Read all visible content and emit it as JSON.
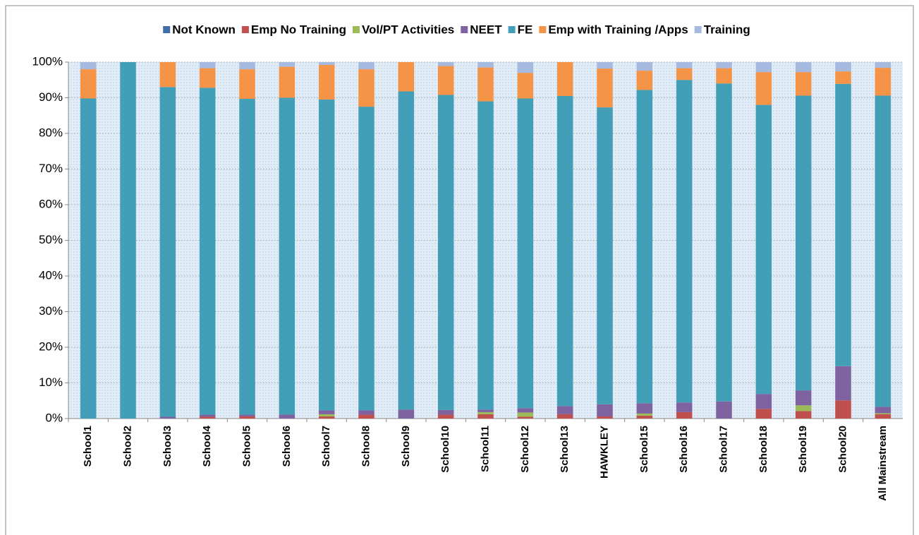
{
  "chart_data": {
    "type": "stacked_bar",
    "categories": [
      "School1",
      "School2",
      "School3",
      "School4",
      "School5",
      "School6",
      "School7",
      "School8",
      "School9",
      "School10",
      "School11",
      "School12",
      "School13",
      "HAWKLEY",
      "School15",
      "School16",
      "School17",
      "School18",
      "School19",
      "School20",
      "All Mainstream"
    ],
    "series": [
      {
        "name": "Not Known",
        "color": "#3e6fa8",
        "values": [
          0,
          0,
          0,
          0,
          0,
          0,
          0,
          0,
          0,
          0,
          0,
          0,
          0,
          0,
          0,
          0,
          0,
          0,
          0,
          0,
          0
        ]
      },
      {
        "name": "Emp No Training",
        "color": "#c0504d",
        "values": [
          0,
          0,
          0,
          0.5,
          0.6,
          0,
          0.6,
          1.1,
          0,
          1.1,
          1.2,
          0.5,
          1.2,
          0.6,
          0.8,
          1.8,
          0,
          2.7,
          2.1,
          5.1,
          1.2
        ]
      },
      {
        "name": "Vol/PT Activities",
        "color": "#9bbb59",
        "values": [
          0,
          0,
          0,
          0,
          0,
          0,
          0.6,
          0,
          0,
          0,
          0.6,
          1.2,
          0,
          0,
          0.6,
          0,
          0,
          0,
          1.6,
          0,
          0.3
        ]
      },
      {
        "name": "NEET",
        "color": "#7f63a1",
        "values": [
          0,
          0,
          0.5,
          0.6,
          0.5,
          1.1,
          1.1,
          1.2,
          2.5,
          1.3,
          0.7,
          1.2,
          2.3,
          3.4,
          2.9,
          2.7,
          4.8,
          4.2,
          4.2,
          9.6,
          1.8
        ]
      },
      {
        "name": "FE",
        "color": "#429fb7",
        "values": [
          89.8,
          100,
          92.5,
          91.7,
          88.6,
          88.9,
          87.2,
          85.2,
          89.3,
          88.4,
          86.5,
          86.9,
          87,
          83.3,
          87.9,
          90.5,
          89.2,
          81.1,
          82.7,
          79.2,
          87.3
        ]
      },
      {
        "name": "Emp with Training /Apps",
        "color": "#f59446",
        "values": [
          8.2,
          0,
          7,
          5.5,
          8.3,
          8.7,
          9.7,
          10.5,
          8.2,
          8.1,
          9.5,
          7.2,
          9.5,
          10.9,
          5.4,
          3.3,
          4.3,
          9.2,
          6.6,
          3.5,
          7.8
        ]
      },
      {
        "name": "Training",
        "color": "#a6b9de",
        "values": [
          2,
          0,
          0,
          1.7,
          2,
          1.3,
          0.8,
          2,
          0,
          1.1,
          1.5,
          3,
          0,
          1.8,
          2.4,
          1.7,
          1.7,
          2.8,
          2.8,
          2.6,
          1.6
        ]
      }
    ],
    "ylim": [
      0,
      100
    ],
    "yticks": [
      {
        "value": 0,
        "label": "0%"
      },
      {
        "value": 10,
        "label": "10%"
      },
      {
        "value": 20,
        "label": "20%"
      },
      {
        "value": 30,
        "label": "30%"
      },
      {
        "value": 40,
        "label": "40%"
      },
      {
        "value": 50,
        "label": "50%"
      },
      {
        "value": 60,
        "label": "60%"
      },
      {
        "value": 70,
        "label": "70%"
      },
      {
        "value": 80,
        "label": "80%"
      },
      {
        "value": 90,
        "label": "90%"
      },
      {
        "value": 100,
        "label": "100%"
      }
    ],
    "grid": true,
    "legend": "top"
  }
}
